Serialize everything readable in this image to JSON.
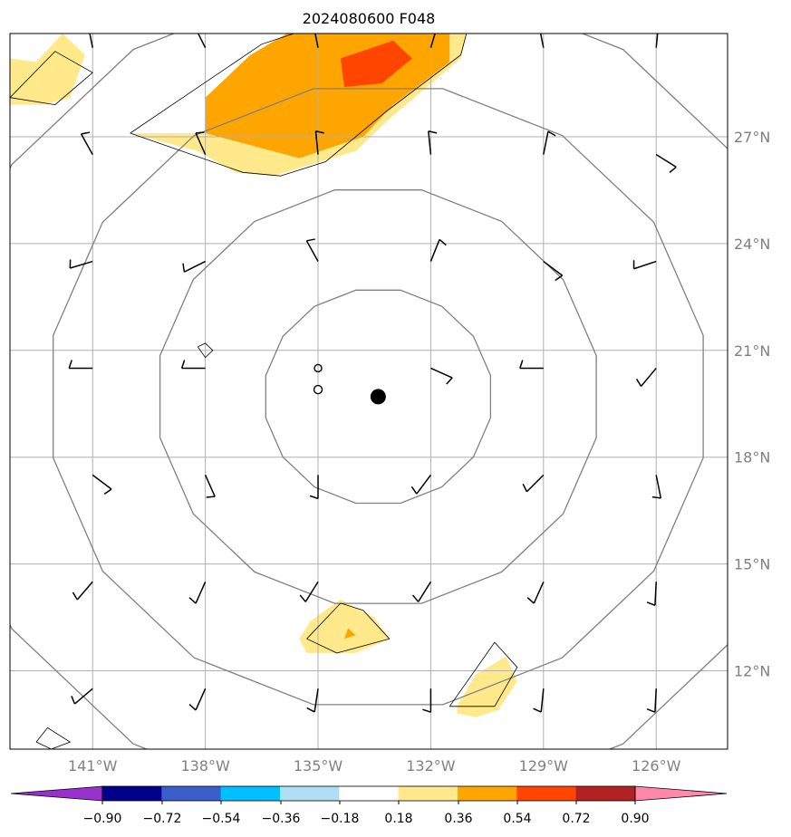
{
  "chart_data": {
    "type": "map",
    "title": "2024080600 F048",
    "map": {
      "lon_range": [
        -143.2,
        -124.1
      ],
      "lat_range": [
        9.8,
        29.9
      ],
      "gridlines": true,
      "lon_ticks": [
        {
          "value": -141,
          "label": "141°W"
        },
        {
          "value": -138,
          "label": "138°W"
        },
        {
          "value": -135,
          "label": "135°W"
        },
        {
          "value": -132,
          "label": "132°W"
        },
        {
          "value": -129,
          "label": "129°W"
        },
        {
          "value": -126,
          "label": "126°W"
        }
      ],
      "lat_ticks": [
        {
          "value": 27,
          "label": "27°N"
        },
        {
          "value": 24,
          "label": "24°N"
        },
        {
          "value": 21,
          "label": "21°N"
        },
        {
          "value": 18,
          "label": "18°N"
        },
        {
          "value": 15,
          "label": "15°N"
        },
        {
          "value": 12,
          "label": "12°N"
        }
      ]
    },
    "storm_center": {
      "lon": -133.4,
      "lat": 19.7
    },
    "small_marker": {
      "lon": -135.0,
      "lat": 19.9
    },
    "range_rings": [
      {
        "r_lon": 3.05,
        "r_lat": 3.05
      },
      {
        "r_lon": 5.92,
        "r_lat": 5.92
      },
      {
        "r_lon": 8.82,
        "r_lat": 8.82
      },
      {
        "r_lon": 11.73,
        "r_lat": 11.73
      }
    ],
    "shaded_regions": [
      {
        "level": 0.18,
        "points": [
          [
            -137.5,
            27.1
          ],
          [
            -135.2,
            29.2
          ],
          [
            -133.5,
            30.1
          ],
          [
            -131.0,
            30.1
          ],
          [
            -131.2,
            29.2
          ],
          [
            -133.0,
            27.6
          ],
          [
            -134.0,
            26.6
          ],
          [
            -136.2,
            25.9
          ],
          [
            -137.2,
            26.0
          ],
          [
            -138.2,
            26.6
          ],
          [
            -140.0,
            27.1
          ]
        ]
      },
      {
        "level": 0.36,
        "points": [
          [
            -138.0,
            28.1
          ],
          [
            -136.8,
            29.3
          ],
          [
            -135.5,
            30.1
          ],
          [
            -131.5,
            30.1
          ],
          [
            -131.5,
            29.1
          ],
          [
            -133.0,
            27.9
          ],
          [
            -133.8,
            27.0
          ],
          [
            -135.5,
            26.4
          ],
          [
            -138.0,
            27.1
          ]
        ]
      },
      {
        "level": 0.54,
        "points": [
          [
            -134.4,
            29.2
          ],
          [
            -133.0,
            29.7
          ],
          [
            -132.5,
            29.2
          ],
          [
            -133.3,
            28.5
          ],
          [
            -134.3,
            28.4
          ]
        ]
      },
      {
        "level": 0.18,
        "points": [
          [
            -143.2,
            29.2
          ],
          [
            -142.5,
            29.1
          ],
          [
            -141.8,
            29.9
          ],
          [
            -141.2,
            29.3
          ],
          [
            -141.6,
            28.1
          ],
          [
            -142.3,
            27.9
          ],
          [
            -143.2,
            27.9
          ]
        ]
      },
      {
        "level": 0.18,
        "points": [
          [
            -135.2,
            13.4
          ],
          [
            -134.4,
            14.0
          ],
          [
            -133.5,
            13.5
          ],
          [
            -133.1,
            12.9
          ],
          [
            -134.0,
            12.5
          ],
          [
            -135.3,
            12.5
          ],
          [
            -135.5,
            12.9
          ]
        ]
      },
      {
        "level": 0.36,
        "points": [
          [
            -134.2,
            13.2
          ],
          [
            -134.0,
            13.0
          ],
          [
            -134.3,
            12.9
          ]
        ]
      },
      {
        "level": 0.18,
        "points": [
          [
            -131.3,
            11.0
          ],
          [
            -130.8,
            11.9
          ],
          [
            -130.0,
            12.4
          ],
          [
            -129.7,
            11.7
          ],
          [
            -130.2,
            10.9
          ],
          [
            -130.8,
            10.7
          ],
          [
            -131.3,
            10.8
          ]
        ]
      },
      {
        "level": -0.18,
        "points": [
          [
            -138.3,
            21.0
          ],
          [
            -138.0,
            21.3
          ],
          [
            -137.7,
            21.0
          ],
          [
            -138.0,
            20.7
          ]
        ]
      },
      {
        "level": -0.18,
        "points": [
          [
            -142.5,
            10.1
          ],
          [
            -142.0,
            10.4
          ],
          [
            -141.6,
            10.0
          ],
          [
            -142.1,
            9.8
          ]
        ]
      }
    ],
    "contours": [
      [
        [
          -140.0,
          27.1
        ],
        [
          -136.5,
          29.6
        ],
        [
          -134.5,
          30.3
        ],
        [
          -131.0,
          30.1
        ],
        [
          -131.2,
          29.3
        ],
        [
          -133.2,
          27.7
        ],
        [
          -134.8,
          26.3
        ],
        [
          -136.0,
          25.9
        ],
        [
          -137.0,
          26.0
        ],
        [
          -140.0,
          27.1
        ]
      ],
      [
        [
          -143.2,
          28.1
        ],
        [
          -142.0,
          29.4
        ],
        [
          -141.0,
          28.8
        ],
        [
          -142.0,
          27.9
        ],
        [
          -143.2,
          28.1
        ]
      ],
      [
        [
          -135.3,
          12.9
        ],
        [
          -134.4,
          13.9
        ],
        [
          -133.8,
          13.7
        ],
        [
          -133.1,
          12.9
        ],
        [
          -134.5,
          12.5
        ],
        [
          -135.3,
          12.9
        ]
      ],
      [
        [
          -131.5,
          11.0
        ],
        [
          -130.3,
          12.8
        ],
        [
          -129.7,
          12.1
        ],
        [
          -130.3,
          11.0
        ],
        [
          -131.5,
          11.0
        ]
      ],
      [
        [
          -138.2,
          21.1
        ],
        [
          -138.0,
          21.2
        ],
        [
          -137.8,
          21.0
        ],
        [
          -138.0,
          20.8
        ],
        [
          -138.2,
          21.1
        ]
      ],
      [
        [
          -142.5,
          10.0
        ],
        [
          -142.2,
          10.4
        ],
        [
          -141.6,
          10.0
        ],
        [
          -142.1,
          9.8
        ],
        [
          -142.5,
          10.0
        ]
      ]
    ],
    "wind_barbs": {
      "lons": [
        -141,
        -138,
        -135,
        -132,
        -129,
        -126
      ],
      "lats": [
        29.5,
        26.5,
        23.5,
        20.5,
        17.5,
        14.5,
        11.5
      ],
      "rows": [
        [
          [
            -0.2,
            1
          ],
          [
            -0.5,
            1
          ],
          [
            -0.2,
            1
          ],
          [
            0.3,
            1
          ],
          [
            -0.2,
            1
          ],
          [
            0.1,
            1
          ]
        ],
        [
          [
            -0.5,
            0.9
          ],
          [
            -0.4,
            0.9
          ],
          [
            -0.1,
            1
          ],
          [
            -0.1,
            1
          ],
          [
            0.2,
            1
          ],
          [
            0.8,
            -0.5
          ]
        ],
        [
          [
            -1,
            -0.3
          ],
          [
            -1,
            -0.5
          ],
          [
            -0.5,
            0.9
          ],
          [
            0.4,
            1
          ],
          [
            0.8,
            -0.6
          ],
          [
            -0.9,
            -0.3
          ]
        ],
        [
          [
            -1,
            0
          ],
          [
            -1,
            0
          ],
          [
            0,
            0
          ],
          [
            0.9,
            -0.4
          ],
          [
            -1,
            0
          ],
          [
            -0.5,
            -0.6
          ]
        ],
        [
          [
            0.8,
            -0.6
          ],
          [
            0.4,
            -0.9
          ],
          [
            0,
            -1
          ],
          [
            -0.6,
            -0.8
          ],
          [
            -0.6,
            -0.6
          ],
          [
            0.2,
            -1
          ]
        ],
        [
          [
            -0.6,
            -0.7
          ],
          [
            -0.4,
            -0.9
          ],
          [
            -0.5,
            -0.8
          ],
          [
            -0.5,
            -0.8
          ],
          [
            -0.4,
            -0.9
          ],
          [
            -0.05,
            -1
          ]
        ],
        [
          [
            -0.7,
            -0.6
          ],
          [
            -0.4,
            -0.9
          ],
          [
            -0.15,
            -1
          ],
          [
            0,
            -1
          ],
          [
            -0.1,
            -1
          ],
          [
            -0.05,
            -1
          ]
        ]
      ]
    },
    "colorbar": {
      "ticks": [
        "−0.90",
        "−0.72",
        "−0.54",
        "−0.36",
        "−0.18",
        "0.18",
        "0.36",
        "0.54",
        "0.72",
        "0.90"
      ],
      "under_color": "#9932cc",
      "over_color": "#ff88aa",
      "colors": [
        "#00008b",
        "#3a5fcd",
        "#00bfff",
        "#afdff5",
        "#ffffff",
        "#ffe98a",
        "#ffa500",
        "#ff4500",
        "#b22222"
      ]
    }
  }
}
